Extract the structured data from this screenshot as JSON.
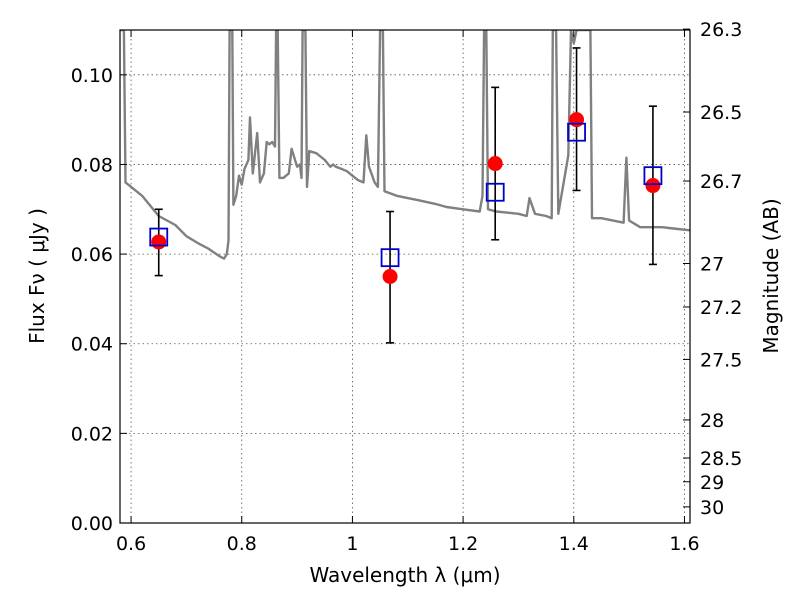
{
  "chart_data": {
    "type": "scatter",
    "xlabel": "Wavelength  λ (μm)",
    "ylabel_left": "Flux  Fν  ( μJy )",
    "ylabel_right": "Magnitude (AB)",
    "xlim": [
      0.58,
      1.61
    ],
    "ylim": [
      0.0,
      0.11
    ],
    "grid": true,
    "x_ticks": [
      0.6,
      0.8,
      1.0,
      1.2,
      1.4,
      1.6
    ],
    "x_tick_labels": [
      "0.6",
      "0.8",
      "1",
      "1.2",
      "1.4",
      "1.6"
    ],
    "y_ticks": [
      0.0,
      0.02,
      0.04,
      0.06,
      0.08,
      0.1
    ],
    "y_tick_labels": [
      "0.00",
      "0.02",
      "0.04",
      "0.06",
      "0.08",
      "0.10"
    ],
    "mag_ticks": [
      {
        "label": "26.3",
        "flux": 0.1102
      },
      {
        "label": "26.5",
        "flux": 0.0917
      },
      {
        "label": "26.7",
        "flux": 0.0763
      },
      {
        "label": "27",
        "flux": 0.0579
      },
      {
        "label": "27.2",
        "flux": 0.0482
      },
      {
        "label": "27.5",
        "flux": 0.0365
      },
      {
        "label": "28",
        "flux": 0.023
      },
      {
        "label": "28.5",
        "flux": 0.0145
      },
      {
        "label": "29",
        "flux": 0.0092
      },
      {
        "label": "30",
        "flux": 0.0036
      }
    ],
    "model_spectrum": {
      "color": "#808080",
      "points": [
        [
          0.58,
          0.11
        ],
        [
          0.587,
          0.11
        ],
        [
          0.59,
          0.076
        ],
        [
          0.6,
          0.075
        ],
        [
          0.62,
          0.073
        ],
        [
          0.65,
          0.0685
        ],
        [
          0.68,
          0.0665
        ],
        [
          0.7,
          0.064
        ],
        [
          0.72,
          0.0625
        ],
        [
          0.74,
          0.0612
        ],
        [
          0.76,
          0.0595
        ],
        [
          0.768,
          0.059
        ],
        [
          0.773,
          0.06
        ],
        [
          0.776,
          0.063
        ],
        [
          0.778,
          0.11
        ],
        [
          0.783,
          0.11
        ],
        [
          0.785,
          0.071
        ],
        [
          0.79,
          0.073
        ],
        [
          0.795,
          0.0775
        ],
        [
          0.8,
          0.0755
        ],
        [
          0.805,
          0.079
        ],
        [
          0.812,
          0.081
        ],
        [
          0.815,
          0.0905
        ],
        [
          0.82,
          0.078
        ],
        [
          0.828,
          0.087
        ],
        [
          0.833,
          0.076
        ],
        [
          0.84,
          0.078
        ],
        [
          0.845,
          0.085
        ],
        [
          0.85,
          0.0845
        ],
        [
          0.855,
          0.085
        ],
        [
          0.86,
          0.084
        ],
        [
          0.862,
          0.11
        ],
        [
          0.865,
          0.11
        ],
        [
          0.868,
          0.077
        ],
        [
          0.875,
          0.077
        ],
        [
          0.885,
          0.078
        ],
        [
          0.89,
          0.0835
        ],
        [
          0.9,
          0.0795
        ],
        [
          0.905,
          0.08
        ],
        [
          0.908,
          0.077
        ],
        [
          0.91,
          0.11
        ],
        [
          0.915,
          0.11
        ],
        [
          0.918,
          0.075
        ],
        [
          0.922,
          0.083
        ],
        [
          0.935,
          0.0825
        ],
        [
          0.95,
          0.081
        ],
        [
          0.96,
          0.0795
        ],
        [
          0.965,
          0.08
        ],
        [
          0.97,
          0.0795
        ],
        [
          0.98,
          0.079
        ],
        [
          0.99,
          0.0785
        ],
        [
          1.0,
          0.0775
        ],
        [
          1.01,
          0.0765
        ],
        [
          1.02,
          0.076
        ],
        [
          1.025,
          0.0865
        ],
        [
          1.03,
          0.0795
        ],
        [
          1.04,
          0.076
        ],
        [
          1.046,
          0.075
        ],
        [
          1.05,
          0.11
        ],
        [
          1.055,
          0.11
        ],
        [
          1.058,
          0.074
        ],
        [
          1.08,
          0.073
        ],
        [
          1.12,
          0.072
        ],
        [
          1.15,
          0.0712
        ],
        [
          1.17,
          0.0705
        ],
        [
          1.2,
          0.07
        ],
        [
          1.23,
          0.0695
        ],
        [
          1.235,
          0.073
        ],
        [
          1.238,
          0.11
        ],
        [
          1.242,
          0.11
        ],
        [
          1.245,
          0.07
        ],
        [
          1.26,
          0.0695
        ],
        [
          1.3,
          0.069
        ],
        [
          1.315,
          0.0685
        ],
        [
          1.32,
          0.0725
        ],
        [
          1.33,
          0.069
        ],
        [
          1.35,
          0.0685
        ],
        [
          1.36,
          0.068
        ],
        [
          1.362,
          0.11
        ],
        [
          1.368,
          0.11
        ],
        [
          1.372,
          0.069
        ],
        [
          1.39,
          0.082
        ],
        [
          1.395,
          0.11
        ],
        [
          1.4,
          0.107
        ],
        [
          1.405,
          0.11
        ],
        [
          1.43,
          0.11
        ],
        [
          1.433,
          0.068
        ],
        [
          1.45,
          0.068
        ],
        [
          1.49,
          0.067
        ],
        [
          1.495,
          0.0815
        ],
        [
          1.5,
          0.0675
        ],
        [
          1.52,
          0.066
        ],
        [
          1.56,
          0.066
        ],
        [
          1.58,
          0.0657
        ],
        [
          1.61,
          0.0653
        ]
      ]
    },
    "series": [
      {
        "marker": "circle",
        "color": "#ff0000",
        "points": [
          {
            "x": 0.65,
            "y": 0.0627,
            "yerr_low": 0.0552,
            "yerr_high": 0.07
          },
          {
            "x": 1.068,
            "y": 0.055,
            "yerr_low": 0.0402,
            "yerr_high": 0.0695
          },
          {
            "x": 1.258,
            "y": 0.0802,
            "yerr_low": 0.0632,
            "yerr_high": 0.0972
          },
          {
            "x": 1.405,
            "y": 0.09,
            "yerr_low": 0.0742,
            "yerr_high": 0.106
          },
          {
            "x": 1.543,
            "y": 0.0753,
            "yerr_low": 0.0577,
            "yerr_high": 0.093
          }
        ]
      },
      {
        "marker": "square-open",
        "color": "#0000cc",
        "points": [
          {
            "x": 0.65,
            "y": 0.0638
          },
          {
            "x": 1.068,
            "y": 0.0592
          },
          {
            "x": 1.258,
            "y": 0.0738
          },
          {
            "x": 1.405,
            "y": 0.0872
          },
          {
            "x": 1.543,
            "y": 0.0775
          }
        ]
      }
    ]
  }
}
